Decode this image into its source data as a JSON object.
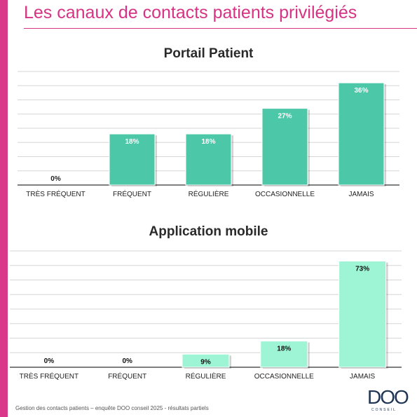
{
  "header": {
    "title": "Les canaux de contacts patients privilégiés"
  },
  "chart_data": [
    {
      "type": "bar",
      "title": "Portail Patient",
      "categories": [
        "TRÈS FRÉQUENT",
        "FRÉQUENT",
        "RÉGULIÈRE",
        "OCCASIONNELLE",
        "JAMAIS"
      ],
      "values": [
        0,
        18,
        18,
        27,
        36
      ],
      "value_labels": [
        "0%",
        "18%",
        "18%",
        "27%",
        "36%"
      ],
      "ylim": [
        0,
        40
      ],
      "grid": true,
      "bar_color": "#4cc8a8"
    },
    {
      "type": "bar",
      "title": "Application mobile",
      "categories": [
        "TRÈS FRÉQUENT",
        "FRÉQUENT",
        "RÉGULIÈRE",
        "OCCASIONNELLE",
        "JAMAIS"
      ],
      "values": [
        0,
        0,
        9,
        18,
        73
      ],
      "value_labels": [
        "0%",
        "0%",
        "9%",
        "18%",
        "73%"
      ],
      "ylim": [
        0,
        80
      ],
      "grid": true,
      "bar_color": "#9ef5d6"
    }
  ],
  "footer": {
    "text": "Gestion des contacts patients – enquête DOO conseil 2025 - résultats partiels"
  },
  "logo": {
    "name": "DOO",
    "subtitle": "CONSEIL"
  },
  "colors": {
    "accent": "#d63384",
    "side_bar": "#d9378a",
    "axis": "#555555",
    "grid": "#d6d6d6"
  }
}
